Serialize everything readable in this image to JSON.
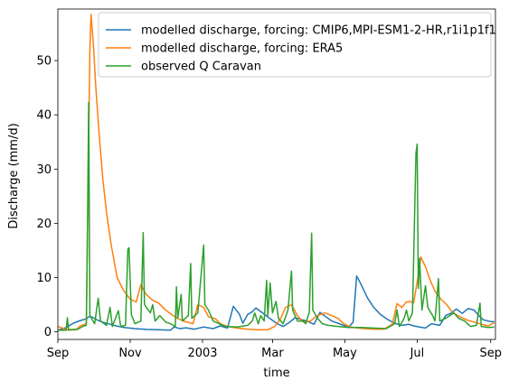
{
  "chart_data": {
    "type": "line",
    "xlabel": "time",
    "ylabel": "Discharge (mm/d)",
    "xlim": [
      "2002-09-01",
      "2003-09-05"
    ],
    "ylim": [
      -1.4,
      59.5
    ],
    "x_ticks": [
      {
        "date": "2002-09-01",
        "label": "Sep"
      },
      {
        "date": "2002-11-01",
        "label": "Nov"
      },
      {
        "date": "2003-01-01",
        "label": "2003"
      },
      {
        "date": "2003-03-01",
        "label": "Mar"
      },
      {
        "date": "2003-05-01",
        "label": "May"
      },
      {
        "date": "2003-07-01",
        "label": "Jul"
      },
      {
        "date": "2003-09-01",
        "label": "Sep"
      }
    ],
    "y_ticks": [
      0,
      10,
      20,
      30,
      40,
      50
    ],
    "grid": false,
    "legend_position": "top-right",
    "series": [
      {
        "name": "modelled discharge, forcing: CMIP6,MPI-ESM1-2-HR,r1i1p1f1",
        "color": "#1f77b4",
        "points": [
          [
            "2002-09-01",
            0.3
          ],
          [
            "2002-09-08",
            0.8
          ],
          [
            "2002-09-14",
            1.6
          ],
          [
            "2002-09-20",
            2.1
          ],
          [
            "2002-09-25",
            2.4
          ],
          [
            "2002-09-28",
            2.9
          ],
          [
            "2002-10-01",
            2.6
          ],
          [
            "2002-10-05",
            2.1
          ],
          [
            "2002-10-10",
            1.7
          ],
          [
            "2002-10-15",
            1.4
          ],
          [
            "2002-10-20",
            1.1
          ],
          [
            "2002-10-27",
            0.8
          ],
          [
            "2002-11-05",
            0.6
          ],
          [
            "2002-11-15",
            0.45
          ],
          [
            "2002-11-25",
            0.4
          ],
          [
            "2002-12-05",
            0.3
          ],
          [
            "2002-12-08",
            0.9
          ],
          [
            "2002-12-13",
            0.6
          ],
          [
            "2002-12-18",
            0.75
          ],
          [
            "2002-12-25",
            0.5
          ],
          [
            "2003-01-02",
            0.9
          ],
          [
            "2003-01-10",
            0.6
          ],
          [
            "2003-01-16",
            1.1
          ],
          [
            "2003-01-22",
            0.7
          ],
          [
            "2003-01-27",
            4.7
          ],
          [
            "2003-02-01",
            3.3
          ],
          [
            "2003-02-04",
            1.6
          ],
          [
            "2003-02-08",
            3.2
          ],
          [
            "2003-02-12",
            3.7
          ],
          [
            "2003-02-15",
            4.4
          ],
          [
            "2003-02-20",
            3.6
          ],
          [
            "2003-02-26",
            2.6
          ],
          [
            "2003-03-05",
            1.5
          ],
          [
            "2003-03-10",
            1.0
          ],
          [
            "2003-03-15",
            1.7
          ],
          [
            "2003-03-20",
            2.6
          ],
          [
            "2003-03-25",
            2.3
          ],
          [
            "2003-03-30",
            2.0
          ],
          [
            "2003-04-05",
            1.4
          ],
          [
            "2003-04-10",
            3.6
          ],
          [
            "2003-04-15",
            2.8
          ],
          [
            "2003-04-20",
            2.0
          ],
          [
            "2003-04-25",
            1.6
          ],
          [
            "2003-04-30",
            1.2
          ],
          [
            "2003-05-04",
            0.8
          ],
          [
            "2003-05-08",
            1.8
          ],
          [
            "2003-05-11",
            10.3
          ],
          [
            "2003-05-15",
            8.6
          ],
          [
            "2003-05-20",
            6.3
          ],
          [
            "2003-05-25",
            4.6
          ],
          [
            "2003-05-31",
            3.2
          ],
          [
            "2003-06-06",
            2.3
          ],
          [
            "2003-06-12",
            1.6
          ],
          [
            "2003-06-18",
            1.2
          ],
          [
            "2003-06-24",
            1.4
          ],
          [
            "2003-06-28",
            1.1
          ],
          [
            "2003-07-03",
            0.9
          ],
          [
            "2003-07-08",
            0.7
          ],
          [
            "2003-07-13",
            1.5
          ],
          [
            "2003-07-20",
            1.2
          ],
          [
            "2003-07-25",
            3.0
          ],
          [
            "2003-07-30",
            3.5
          ],
          [
            "2003-08-03",
            4.2
          ],
          [
            "2003-08-08",
            3.4
          ],
          [
            "2003-08-13",
            4.3
          ],
          [
            "2003-08-18",
            4.0
          ],
          [
            "2003-08-22",
            3.0
          ],
          [
            "2003-08-26",
            2.2
          ],
          [
            "2003-09-01",
            1.9
          ],
          [
            "2003-09-04",
            1.9
          ]
        ]
      },
      {
        "name": "modelled discharge, forcing: ERA5",
        "color": "#ff7f0e",
        "points": [
          [
            "2002-09-01",
            1.0
          ],
          [
            "2002-09-06",
            0.6
          ],
          [
            "2002-09-10",
            0.3
          ],
          [
            "2002-09-16",
            0.4
          ],
          [
            "2002-09-20",
            1.1
          ],
          [
            "2002-09-25",
            1.5
          ],
          [
            "2002-09-28",
            52.0
          ],
          [
            "2002-09-29",
            58.5
          ],
          [
            "2002-10-01",
            53.0
          ],
          [
            "2002-10-03",
            45.0
          ],
          [
            "2002-10-06",
            36.0
          ],
          [
            "2002-10-09",
            28.0
          ],
          [
            "2002-10-12",
            22.0
          ],
          [
            "2002-10-16",
            16.0
          ],
          [
            "2002-10-21",
            10.0
          ],
          [
            "2002-10-26",
            7.8
          ],
          [
            "2002-11-01",
            6.0
          ],
          [
            "2002-11-06",
            5.5
          ],
          [
            "2002-11-10",
            8.7
          ],
          [
            "2002-11-14",
            7.0
          ],
          [
            "2002-11-20",
            5.8
          ],
          [
            "2002-11-25",
            5.3
          ],
          [
            "2002-11-30",
            4.2
          ],
          [
            "2002-12-04",
            3.5
          ],
          [
            "2002-12-10",
            2.6
          ],
          [
            "2002-12-16",
            2.0
          ],
          [
            "2002-12-24",
            1.5
          ],
          [
            "2002-12-28",
            5.0
          ],
          [
            "2003-01-02",
            4.5
          ],
          [
            "2003-01-06",
            2.8
          ],
          [
            "2003-01-12",
            2.4
          ],
          [
            "2003-01-16",
            1.5
          ],
          [
            "2003-01-22",
            1.0
          ],
          [
            "2003-01-30",
            0.7
          ],
          [
            "2003-02-08",
            0.5
          ],
          [
            "2003-02-16",
            0.4
          ],
          [
            "2003-02-25",
            0.4
          ],
          [
            "2003-03-03",
            1.0
          ],
          [
            "2003-03-08",
            2.5
          ],
          [
            "2003-03-12",
            4.5
          ],
          [
            "2003-03-17",
            5.0
          ],
          [
            "2003-03-22",
            3.0
          ],
          [
            "2003-03-27",
            1.8
          ],
          [
            "2003-04-02",
            2.0
          ],
          [
            "2003-04-07",
            2.9
          ],
          [
            "2003-04-14",
            3.5
          ],
          [
            "2003-04-20",
            3.0
          ],
          [
            "2003-04-25",
            2.5
          ],
          [
            "2003-04-30",
            1.5
          ],
          [
            "2003-05-06",
            0.9
          ],
          [
            "2003-05-12",
            0.7
          ],
          [
            "2003-05-18",
            0.6
          ],
          [
            "2003-05-26",
            0.5
          ],
          [
            "2003-06-03",
            0.5
          ],
          [
            "2003-06-10",
            1.4
          ],
          [
            "2003-06-14",
            5.2
          ],
          [
            "2003-06-18",
            4.5
          ],
          [
            "2003-06-22",
            5.5
          ],
          [
            "2003-06-25",
            5.6
          ],
          [
            "2003-06-28",
            5.3
          ],
          [
            "2003-07-02",
            10.5
          ],
          [
            "2003-07-04",
            13.8
          ],
          [
            "2003-07-08",
            12.0
          ],
          [
            "2003-07-12",
            9.5
          ],
          [
            "2003-07-16",
            7.5
          ],
          [
            "2003-07-21",
            6.0
          ],
          [
            "2003-07-26",
            5.0
          ],
          [
            "2003-07-31",
            3.5
          ],
          [
            "2003-08-06",
            2.8
          ],
          [
            "2003-08-12",
            2.2
          ],
          [
            "2003-08-18",
            1.8
          ],
          [
            "2003-08-24",
            1.4
          ],
          [
            "2003-08-30",
            1.1
          ],
          [
            "2003-09-04",
            1.7
          ]
        ]
      },
      {
        "name": "observed Q Caravan",
        "color": "#2ca02c",
        "points": [
          [
            "2002-09-01",
            0.3
          ],
          [
            "2002-09-08",
            0.3
          ],
          [
            "2002-09-09",
            2.6
          ],
          [
            "2002-09-10",
            0.4
          ],
          [
            "2002-09-18",
            0.5
          ],
          [
            "2002-09-22",
            1.0
          ],
          [
            "2002-09-25",
            1.2
          ],
          [
            "2002-09-26",
            20.0
          ],
          [
            "2002-09-27",
            42.3
          ],
          [
            "2002-09-28",
            3.0
          ],
          [
            "2002-10-02",
            1.5
          ],
          [
            "2002-10-05",
            6.2
          ],
          [
            "2002-10-07",
            2.0
          ],
          [
            "2002-10-12",
            1.2
          ],
          [
            "2002-10-15",
            4.5
          ],
          [
            "2002-10-17",
            1.0
          ],
          [
            "2002-10-22",
            3.9
          ],
          [
            "2002-10-24",
            1.0
          ],
          [
            "2002-10-28",
            1.2
          ],
          [
            "2002-10-30",
            15.2
          ],
          [
            "2002-10-31",
            15.5
          ],
          [
            "2002-11-02",
            3.2
          ],
          [
            "2002-11-05",
            1.5
          ],
          [
            "2002-11-10",
            2.0
          ],
          [
            "2002-11-12",
            18.3
          ],
          [
            "2002-11-13",
            5.0
          ],
          [
            "2002-11-18",
            3.5
          ],
          [
            "2002-11-20",
            5.0
          ],
          [
            "2002-11-22",
            2.0
          ],
          [
            "2002-11-26",
            3.0
          ],
          [
            "2002-12-01",
            1.8
          ],
          [
            "2002-12-05",
            1.5
          ],
          [
            "2002-12-09",
            1.0
          ],
          [
            "2002-12-10",
            8.3
          ],
          [
            "2002-12-11",
            2.5
          ],
          [
            "2002-12-14",
            6.9
          ],
          [
            "2002-12-15",
            2.0
          ],
          [
            "2002-12-20",
            3.0
          ],
          [
            "2002-12-22",
            12.6
          ],
          [
            "2002-12-23",
            2.5
          ],
          [
            "2002-12-28",
            3.5
          ],
          [
            "2003-01-02",
            16.0
          ],
          [
            "2003-01-03",
            5.0
          ],
          [
            "2003-01-06",
            4.0
          ],
          [
            "2003-01-10",
            2.0
          ],
          [
            "2003-01-20",
            1.0
          ],
          [
            "2003-01-30",
            0.9
          ],
          [
            "2003-02-08",
            1.2
          ],
          [
            "2003-02-12",
            2.0
          ],
          [
            "2003-02-14",
            3.5
          ],
          [
            "2003-02-17",
            1.5
          ],
          [
            "2003-02-19",
            3.0
          ],
          [
            "2003-02-22",
            2.0
          ],
          [
            "2003-02-24",
            9.5
          ],
          [
            "2003-02-25",
            3.0
          ],
          [
            "2003-02-27",
            9.0
          ],
          [
            "2003-03-01",
            3.5
          ],
          [
            "2003-03-04",
            5.6
          ],
          [
            "2003-03-06",
            2.5
          ],
          [
            "2003-03-10",
            1.5
          ],
          [
            "2003-03-14",
            4.0
          ],
          [
            "2003-03-17",
            11.2
          ],
          [
            "2003-03-18",
            4.0
          ],
          [
            "2003-03-22",
            2.0
          ],
          [
            "2003-03-27",
            2.0
          ],
          [
            "2003-03-29",
            1.5
          ],
          [
            "2003-04-01",
            3.6
          ],
          [
            "2003-04-03",
            18.2
          ],
          [
            "2003-04-04",
            4.0
          ],
          [
            "2003-04-08",
            2.5
          ],
          [
            "2003-04-12",
            1.5
          ],
          [
            "2003-04-17",
            1.2
          ],
          [
            "2003-04-25",
            1.0
          ],
          [
            "2003-05-05",
            0.8
          ],
          [
            "2003-05-15",
            0.8
          ],
          [
            "2003-05-25",
            0.7
          ],
          [
            "2003-06-05",
            0.6
          ],
          [
            "2003-06-12",
            1.5
          ],
          [
            "2003-06-14",
            4.0
          ],
          [
            "2003-06-16",
            1.0
          ],
          [
            "2003-06-20",
            2.5
          ],
          [
            "2003-06-22",
            4.0
          ],
          [
            "2003-06-24",
            2.0
          ],
          [
            "2003-06-27",
            3.5
          ],
          [
            "2003-06-30",
            33.0
          ],
          [
            "2003-07-01",
            34.6
          ],
          [
            "2003-07-02",
            8.0
          ],
          [
            "2003-07-03",
            13.5
          ],
          [
            "2003-07-05",
            4.0
          ],
          [
            "2003-07-08",
            8.5
          ],
          [
            "2003-07-10",
            4.5
          ],
          [
            "2003-07-14",
            3.0
          ],
          [
            "2003-07-16",
            2.0
          ],
          [
            "2003-07-19",
            9.8
          ],
          [
            "2003-07-20",
            2.0
          ],
          [
            "2003-07-25",
            2.5
          ],
          [
            "2003-08-01",
            3.5
          ],
          [
            "2003-08-05",
            2.5
          ],
          [
            "2003-08-10",
            2.0
          ],
          [
            "2003-08-15",
            1.0
          ],
          [
            "2003-08-20",
            1.2
          ],
          [
            "2003-08-23",
            5.3
          ],
          [
            "2003-08-24",
            1.0
          ],
          [
            "2003-08-30",
            0.8
          ],
          [
            "2003-09-04",
            0.9
          ]
        ]
      }
    ]
  }
}
